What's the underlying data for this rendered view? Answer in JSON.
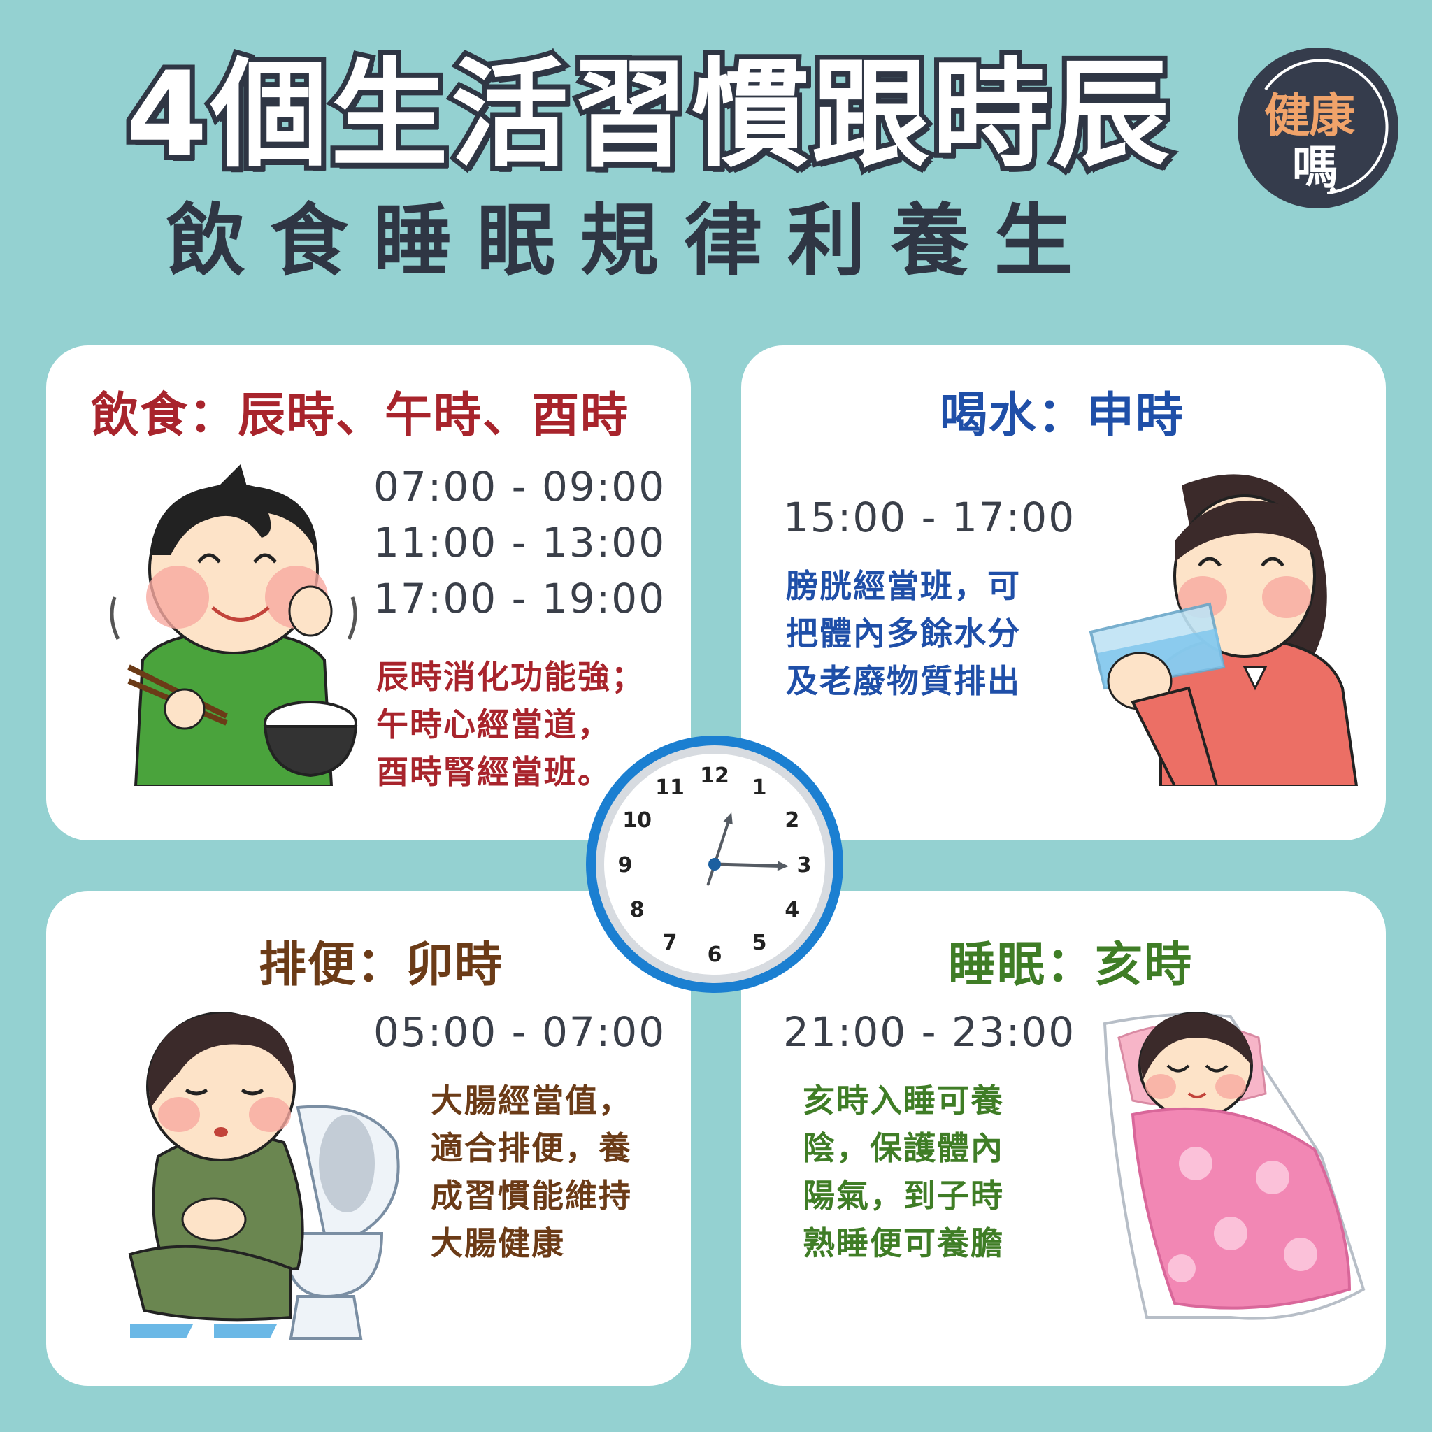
{
  "header": {
    "title": "4個生活習慣跟時辰",
    "subtitle": "飲食睡眠規律利養生",
    "badge_line1": "健康",
    "badge_line2": "嗎"
  },
  "colors": {
    "background": "#94d1d1",
    "diet": "#a8242c",
    "water": "#1f4fa8",
    "bowel": "#6b3b17",
    "sleep": "#3f7d26",
    "clock_rim": "#1b7fd1"
  },
  "cards": {
    "diet": {
      "title": "飲食：辰時、午時、酉時",
      "times": [
        "07:00 - 09:00",
        "11:00 - 13:00",
        "17:00 - 19:00"
      ],
      "desc": [
        "辰時消化功能強；",
        "午時心經當道，",
        "酉時腎經當班。"
      ]
    },
    "water": {
      "title": "喝水：申時",
      "times": [
        "15:00 - 17:00"
      ],
      "desc": [
        "膀胱經當班，可",
        "把體內多餘水分",
        "及老廢物質排出"
      ]
    },
    "bowel": {
      "title": "排便：卯時",
      "times": [
        "05:00 - 07:00"
      ],
      "desc": [
        "大腸經當值，",
        "適合排便，養",
        "成習慣能維持",
        "大腸健康"
      ]
    },
    "sleep": {
      "title": "睡眠：亥時",
      "times": [
        "21:00 - 23:00"
      ],
      "desc": [
        "亥時入睡可養",
        "陰，保護體內",
        "陽氣，到子時",
        "熟睡便可養膽"
      ]
    }
  },
  "clock": {
    "numbers": [
      "12",
      "1",
      "2",
      "3",
      "4",
      "5",
      "6",
      "7",
      "8",
      "9",
      "10",
      "11"
    ],
    "hour": 3,
    "minute": 3
  }
}
